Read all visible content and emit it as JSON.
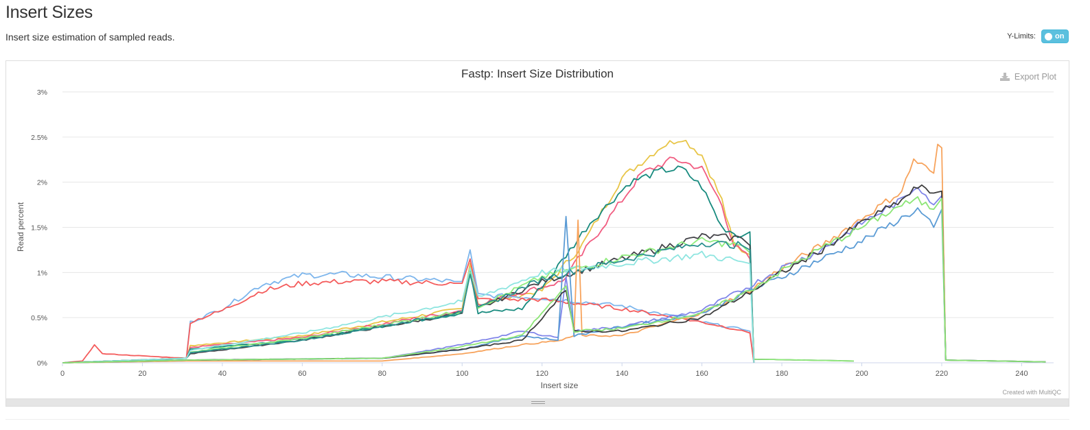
{
  "section": {
    "title": "Insert Sizes",
    "description": "Insert size estimation of sampled reads."
  },
  "ylimits": {
    "label": "Y-Limits:",
    "toggle_text": "on",
    "enabled": true
  },
  "plot": {
    "export_label": "Export Plot",
    "credit": "Created with MultiQC"
  },
  "chart_data": {
    "type": "line",
    "title": "Fastp: Insert Size Distribution",
    "xlabel": "Insert size",
    "ylabel": "Read percent",
    "xlim": [
      0,
      248
    ],
    "ylim": [
      0,
      3
    ],
    "x_ticks": [
      0,
      20,
      40,
      60,
      80,
      100,
      120,
      140,
      160,
      180,
      200,
      220,
      240
    ],
    "y_ticks": [
      0,
      0.5,
      1,
      1.5,
      2,
      2.5,
      3
    ],
    "y_tick_labels": [
      "0%",
      "0.5%",
      "1%",
      "1.5%",
      "2%",
      "2.5%",
      "3%"
    ],
    "grid": true,
    "series": [
      {
        "color": "#e8c547",
        "points": [
          [
            0,
            0
          ],
          [
            31,
            0.05
          ],
          [
            32,
            0.19
          ],
          [
            60,
            0.3
          ],
          [
            100,
            0.6
          ],
          [
            102,
            1.1
          ],
          [
            104,
            0.65
          ],
          [
            120,
            0.8
          ],
          [
            130,
            1.3
          ],
          [
            140,
            2.05
          ],
          [
            150,
            2.4
          ],
          [
            155,
            2.49
          ],
          [
            160,
            2.3
          ],
          [
            165,
            1.8
          ],
          [
            168,
            1.3
          ],
          [
            172,
            1.2
          ],
          [
            173,
            0
          ]
        ]
      },
      {
        "color": "#f15c80",
        "points": [
          [
            0,
            0
          ],
          [
            31,
            0.05
          ],
          [
            32,
            0.17
          ],
          [
            60,
            0.28
          ],
          [
            100,
            0.58
          ],
          [
            102,
            1.0
          ],
          [
            104,
            0.65
          ],
          [
            125,
            0.9
          ],
          [
            135,
            1.5
          ],
          [
            145,
            2.1
          ],
          [
            150,
            2.2
          ],
          [
            153,
            2.26
          ],
          [
            160,
            2.15
          ],
          [
            165,
            1.75
          ],
          [
            168,
            1.3
          ],
          [
            172,
            1.15
          ],
          [
            173,
            0
          ]
        ]
      },
      {
        "color": "#178a7e",
        "points": [
          [
            0,
            0
          ],
          [
            31,
            0.05
          ],
          [
            32,
            0.15
          ],
          [
            60,
            0.26
          ],
          [
            100,
            0.55
          ],
          [
            102,
            1.02
          ],
          [
            104,
            0.55
          ],
          [
            115,
            0.6
          ],
          [
            122,
            0.95
          ],
          [
            132,
            1.55
          ],
          [
            142,
            2.0
          ],
          [
            150,
            2.13
          ],
          [
            155,
            2.15
          ],
          [
            160,
            1.95
          ],
          [
            165,
            1.5
          ],
          [
            170,
            1.4
          ],
          [
            172,
            1.45
          ],
          [
            173,
            0
          ]
        ]
      },
      {
        "color": "#7cb5ec",
        "points": [
          [
            0,
            0
          ],
          [
            31,
            0.05
          ],
          [
            32,
            0.45
          ],
          [
            40,
            0.6
          ],
          [
            50,
            0.87
          ],
          [
            60,
            0.97
          ],
          [
            70,
            0.98
          ],
          [
            80,
            0.95
          ],
          [
            98,
            0.9
          ],
          [
            100,
            0.9
          ],
          [
            102,
            1.25
          ],
          [
            104,
            0.75
          ],
          [
            120,
            0.72
          ],
          [
            140,
            0.63
          ],
          [
            160,
            0.45
          ],
          [
            170,
            0.37
          ],
          [
            172,
            0.35
          ],
          [
            173,
            0
          ]
        ]
      },
      {
        "color": "#f45b5b",
        "points": [
          [
            0,
            0
          ],
          [
            5,
            0.02
          ],
          [
            8,
            0.2
          ],
          [
            10,
            0.1
          ],
          [
            31,
            0.05
          ],
          [
            32,
            0.45
          ],
          [
            40,
            0.58
          ],
          [
            50,
            0.8
          ],
          [
            60,
            0.88
          ],
          [
            70,
            0.9
          ],
          [
            80,
            0.9
          ],
          [
            98,
            0.88
          ],
          [
            100,
            0.88
          ],
          [
            102,
            1.15
          ],
          [
            104,
            0.7
          ],
          [
            120,
            0.7
          ],
          [
            140,
            0.6
          ],
          [
            160,
            0.45
          ],
          [
            170,
            0.36
          ],
          [
            172,
            0.33
          ],
          [
            173,
            0
          ]
        ]
      },
      {
        "color": "#434348",
        "points": [
          [
            0,
            0
          ],
          [
            31,
            0.05
          ],
          [
            32,
            0.1
          ],
          [
            60,
            0.25
          ],
          [
            100,
            0.55
          ],
          [
            102,
            1.0
          ],
          [
            104,
            0.6
          ],
          [
            120,
            0.9
          ],
          [
            140,
            1.15
          ],
          [
            160,
            1.4
          ],
          [
            170,
            1.38
          ],
          [
            172,
            1.3
          ],
          [
            173,
            0.04
          ],
          [
            198,
            0.02
          ]
        ]
      },
      {
        "color": "#90ed7d",
        "points": [
          [
            0,
            0
          ],
          [
            31,
            0.05
          ],
          [
            32,
            0.12
          ],
          [
            60,
            0.27
          ],
          [
            100,
            0.57
          ],
          [
            102,
            1.0
          ],
          [
            104,
            0.62
          ],
          [
            120,
            0.95
          ],
          [
            140,
            1.17
          ],
          [
            160,
            1.35
          ],
          [
            170,
            1.3
          ],
          [
            172,
            1.22
          ],
          [
            173,
            0.04
          ],
          [
            198,
            0.02
          ]
        ]
      },
      {
        "color": "#2b908f",
        "points": [
          [
            0,
            0
          ],
          [
            31,
            0.05
          ],
          [
            32,
            0.11
          ],
          [
            60,
            0.25
          ],
          [
            100,
            0.56
          ],
          [
            102,
            0.98
          ],
          [
            104,
            0.6
          ],
          [
            120,
            0.93
          ],
          [
            140,
            1.14
          ],
          [
            160,
            1.33
          ],
          [
            170,
            1.3
          ],
          [
            172,
            1.25
          ],
          [
            173,
            0
          ]
        ]
      },
      {
        "color": "#8ee5e0",
        "points": [
          [
            0,
            0
          ],
          [
            31,
            0.05
          ],
          [
            32,
            0.14
          ],
          [
            60,
            0.33
          ],
          [
            100,
            0.68
          ],
          [
            102,
            1.05
          ],
          [
            104,
            0.72
          ],
          [
            120,
            1.0
          ],
          [
            140,
            1.1
          ],
          [
            160,
            1.2
          ],
          [
            170,
            1.12
          ],
          [
            172,
            1.1
          ],
          [
            173,
            0
          ]
        ]
      },
      {
        "color": "#f7a35c",
        "points": [
          [
            0,
            0
          ],
          [
            31,
            0.02
          ],
          [
            80,
            0.02
          ],
          [
            100,
            0.1
          ],
          [
            115,
            0.2
          ],
          [
            125,
            0.25
          ],
          [
            128,
            0.3
          ],
          [
            129,
            1.58
          ],
          [
            130,
            0.3
          ],
          [
            140,
            0.3
          ],
          [
            160,
            0.55
          ],
          [
            172,
            0.8
          ],
          [
            180,
            1.05
          ],
          [
            190,
            1.3
          ],
          [
            200,
            1.6
          ],
          [
            210,
            1.9
          ],
          [
            213,
            2.25
          ],
          [
            218,
            2.1
          ],
          [
            219,
            2.42
          ],
          [
            220,
            2.38
          ],
          [
            221,
            0.03
          ],
          [
            246,
            0.01
          ]
        ]
      },
      {
        "color": "#8085e9",
        "points": [
          [
            0,
            0
          ],
          [
            31,
            0.03
          ],
          [
            80,
            0.05
          ],
          [
            100,
            0.2
          ],
          [
            115,
            0.35
          ],
          [
            124,
            0.28
          ],
          [
            126,
            0.95
          ],
          [
            128,
            0.35
          ],
          [
            140,
            0.4
          ],
          [
            160,
            0.58
          ],
          [
            172,
            0.85
          ],
          [
            180,
            1.05
          ],
          [
            190,
            1.25
          ],
          [
            200,
            1.55
          ],
          [
            210,
            1.8
          ],
          [
            214,
            1.97
          ],
          [
            218,
            1.75
          ],
          [
            220,
            1.85
          ],
          [
            221,
            0.03
          ],
          [
            246,
            0.01
          ]
        ]
      },
      {
        "color": "#5a9bd5",
        "points": [
          [
            0,
            0
          ],
          [
            31,
            0.03
          ],
          [
            80,
            0.05
          ],
          [
            100,
            0.15
          ],
          [
            115,
            0.3
          ],
          [
            124,
            0.25
          ],
          [
            126,
            1.62
          ],
          [
            128,
            0.3
          ],
          [
            140,
            0.4
          ],
          [
            160,
            0.55
          ],
          [
            172,
            0.8
          ],
          [
            180,
            0.95
          ],
          [
            190,
            1.15
          ],
          [
            200,
            1.35
          ],
          [
            210,
            1.6
          ],
          [
            214,
            1.7
          ],
          [
            218,
            1.5
          ],
          [
            220,
            1.7
          ],
          [
            221,
            0.03
          ],
          [
            246,
            0.01
          ]
        ]
      },
      {
        "color": "#3d3d3d",
        "points": [
          [
            0,
            0
          ],
          [
            31,
            0.03
          ],
          [
            80,
            0.05
          ],
          [
            100,
            0.15
          ],
          [
            115,
            0.25
          ],
          [
            126,
            0.8
          ],
          [
            128,
            0.35
          ],
          [
            140,
            0.35
          ],
          [
            160,
            0.5
          ],
          [
            172,
            0.78
          ],
          [
            180,
            1.0
          ],
          [
            190,
            1.25
          ],
          [
            200,
            1.55
          ],
          [
            210,
            1.8
          ],
          [
            214,
            1.95
          ],
          [
            218,
            1.88
          ],
          [
            220,
            1.9
          ],
          [
            221,
            0.03
          ],
          [
            246,
            0.01
          ]
        ]
      },
      {
        "color": "#8ce676",
        "points": [
          [
            0,
            0
          ],
          [
            31,
            0.03
          ],
          [
            80,
            0.05
          ],
          [
            100,
            0.18
          ],
          [
            115,
            0.3
          ],
          [
            126,
            0.85
          ],
          [
            128,
            0.35
          ],
          [
            140,
            0.38
          ],
          [
            160,
            0.55
          ],
          [
            172,
            0.8
          ],
          [
            180,
            1.02
          ],
          [
            190,
            1.27
          ],
          [
            200,
            1.5
          ],
          [
            210,
            1.75
          ],
          [
            214,
            1.8
          ],
          [
            218,
            1.7
          ],
          [
            220,
            1.82
          ],
          [
            221,
            0.03
          ],
          [
            246,
            0.01
          ]
        ]
      }
    ]
  }
}
